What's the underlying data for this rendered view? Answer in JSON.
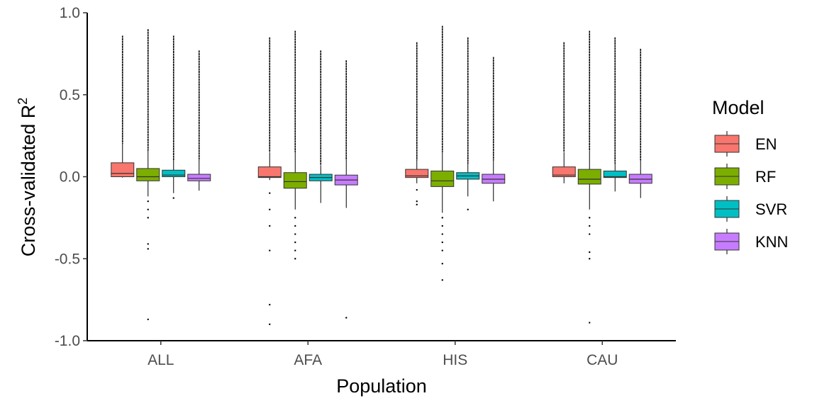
{
  "chart_data": {
    "type": "boxplot",
    "xlabel": "Population",
    "ylabel": "Cross-validated R",
    "ylabel_superscript": "2",
    "ylim": [
      -1.0,
      1.0
    ],
    "yticks": [
      1.0,
      0.5,
      0.0,
      -0.5,
      -1.0
    ],
    "ytick_labels": [
      "1.0",
      "0.5",
      "0.0",
      "-0.5",
      "-1.0"
    ],
    "categories": [
      "ALL",
      "AFA",
      "HIS",
      "CAU"
    ],
    "legend": {
      "title": "Model",
      "position": "right"
    },
    "series": [
      {
        "name": "EN",
        "color": "#F8766D",
        "boxes": [
          {
            "q1": 0.0,
            "median": 0.02,
            "q3": 0.085,
            "whisker_low": -0.005,
            "whisker_high": 0.2,
            "outliers_low": [],
            "outliers_high_range": [
              0.2,
              0.86
            ]
          },
          {
            "q1": -0.005,
            "median": 0.0,
            "q3": 0.06,
            "whisker_low": -0.02,
            "whisker_high": 0.15,
            "outliers_low": [
              -0.1,
              -0.2,
              -0.3,
              -0.45,
              -0.78,
              -0.9
            ],
            "outliers_high_range": [
              0.15,
              0.85
            ]
          },
          {
            "q1": -0.005,
            "median": 0.005,
            "q3": 0.045,
            "whisker_low": -0.04,
            "whisker_high": 0.1,
            "outliers_low": [
              -0.08,
              -0.15,
              -0.17
            ],
            "outliers_high_range": [
              0.1,
              0.82
            ]
          },
          {
            "q1": 0.0,
            "median": 0.01,
            "q3": 0.06,
            "whisker_low": -0.04,
            "whisker_high": 0.15,
            "outliers_low": [],
            "outliers_high_range": [
              0.15,
              0.82
            ]
          }
        ]
      },
      {
        "name": "RF",
        "color": "#7CAE00",
        "boxes": [
          {
            "q1": -0.025,
            "median": 0.0,
            "q3": 0.05,
            "whisker_low": -0.12,
            "whisker_high": 0.16,
            "outliers_low": [
              -0.15,
              -0.2,
              -0.25,
              -0.41,
              -0.44,
              -0.87
            ],
            "outliers_high_range": [
              0.16,
              0.9
            ]
          },
          {
            "q1": -0.07,
            "median": -0.03,
            "q3": 0.025,
            "whisker_low": -0.2,
            "whisker_high": 0.15,
            "outliers_low": [
              -0.25,
              -0.3,
              -0.35,
              -0.4,
              -0.45,
              -0.5
            ],
            "outliers_high_range": [
              0.15,
              0.89
            ]
          },
          {
            "q1": -0.06,
            "median": -0.025,
            "q3": 0.035,
            "whisker_low": -0.22,
            "whisker_high": 0.15,
            "outliers_low": [
              -0.25,
              -0.3,
              -0.35,
              -0.4,
              -0.45,
              -0.53,
              -0.63
            ],
            "outliers_high_range": [
              0.15,
              0.92
            ]
          },
          {
            "q1": -0.045,
            "median": -0.015,
            "q3": 0.045,
            "whisker_low": -0.2,
            "whisker_high": 0.16,
            "outliers_low": [
              -0.25,
              -0.3,
              -0.35,
              -0.46,
              -0.5,
              -0.89
            ],
            "outliers_high_range": [
              0.16,
              0.89
            ]
          }
        ]
      },
      {
        "name": "SVR",
        "color": "#00BFC4",
        "boxes": [
          {
            "q1": 0.0,
            "median": 0.01,
            "q3": 0.04,
            "whisker_low": -0.1,
            "whisker_high": 0.1,
            "outliers_low": [
              -0.13
            ],
            "outliers_high_range": [
              0.1,
              0.86
            ]
          },
          {
            "q1": -0.025,
            "median": -0.005,
            "q3": 0.015,
            "whisker_low": -0.16,
            "whisker_high": 0.07,
            "outliers_low": [],
            "outliers_high_range": [
              0.07,
              0.77
            ]
          },
          {
            "q1": -0.015,
            "median": 0.005,
            "q3": 0.025,
            "whisker_low": -0.12,
            "whisker_high": 0.08,
            "outliers_low": [
              -0.2
            ],
            "outliers_high_range": [
              0.08,
              0.85
            ]
          },
          {
            "q1": -0.005,
            "median": 0.0,
            "q3": 0.035,
            "whisker_low": -0.09,
            "whisker_high": 0.08,
            "outliers_low": [],
            "outliers_high_range": [
              0.08,
              0.85
            ]
          }
        ]
      },
      {
        "name": "KNN",
        "color": "#C77CFF",
        "boxes": [
          {
            "q1": -0.025,
            "median": -0.01,
            "q3": 0.015,
            "whisker_low": -0.085,
            "whisker_high": 0.1,
            "outliers_low": [],
            "outliers_high_range": [
              0.1,
              0.77
            ]
          },
          {
            "q1": -0.05,
            "median": -0.02,
            "q3": 0.01,
            "whisker_low": -0.19,
            "whisker_high": 0.1,
            "outliers_low": [
              -0.86
            ],
            "outliers_high_range": [
              0.1,
              0.71
            ]
          },
          {
            "q1": -0.04,
            "median": -0.015,
            "q3": 0.015,
            "whisker_low": -0.15,
            "whisker_high": 0.1,
            "outliers_low": [],
            "outliers_high_range": [
              0.1,
              0.73
            ]
          },
          {
            "q1": -0.04,
            "median": -0.015,
            "q3": 0.015,
            "whisker_low": -0.13,
            "whisker_high": 0.1,
            "outliers_low": [],
            "outliers_high_range": [
              0.1,
              0.78
            ]
          }
        ]
      }
    ]
  }
}
